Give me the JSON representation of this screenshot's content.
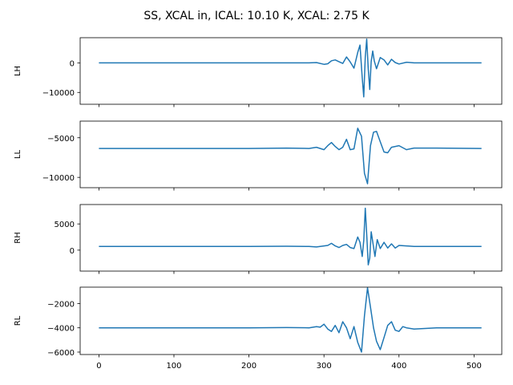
{
  "figure": {
    "suptitle": "SS, XCAL in, ICAL: 10.10 K, XCAL: 2.75 K"
  },
  "chart_data": [
    {
      "type": "line",
      "ylabel": "LH",
      "xlim": [
        -25,
        537
      ],
      "ylim": [
        -14000,
        8500
      ],
      "yticks": [
        {
          "value": 0,
          "label": "0"
        },
        {
          "value": -10000,
          "label": "−10000"
        }
      ],
      "series": [
        {
          "color": "#1f77b4",
          "x": [
            0,
            100,
            200,
            250,
            280,
            290,
            300,
            305,
            310,
            315,
            320,
            325,
            330,
            335,
            340,
            345,
            348,
            351,
            353,
            355,
            357,
            359,
            361,
            363,
            365,
            367,
            370,
            375,
            380,
            385,
            390,
            395,
            400,
            410,
            420,
            450,
            510
          ],
          "y": [
            0,
            0,
            0,
            0,
            0,
            100,
            -500,
            -300,
            700,
            1000,
            400,
            -200,
            2000,
            300,
            -1800,
            3500,
            6000,
            -5000,
            -11500,
            2000,
            8000,
            -2000,
            -9000,
            500,
            4000,
            700,
            -2000,
            1800,
            1000,
            -700,
            1200,
            100,
            -400,
            200,
            0,
            0,
            0
          ]
        }
      ]
    },
    {
      "type": "line",
      "ylabel": "LL",
      "xlim": [
        -25,
        537
      ],
      "ylim": [
        -11300,
        -2900
      ],
      "yticks": [
        {
          "value": -5000,
          "label": "−5000"
        },
        {
          "value": -10000,
          "label": "−10000"
        }
      ],
      "series": [
        {
          "color": "#1f77b4",
          "x": [
            0,
            100,
            200,
            250,
            280,
            290,
            300,
            305,
            310,
            315,
            320,
            325,
            330,
            335,
            340,
            345,
            350,
            354,
            358,
            362,
            366,
            370,
            375,
            380,
            385,
            390,
            400,
            410,
            420,
            450,
            510
          ],
          "y": [
            -6350,
            -6350,
            -6350,
            -6300,
            -6350,
            -6200,
            -6500,
            -6000,
            -5600,
            -6100,
            -6500,
            -6200,
            -5200,
            -6500,
            -6400,
            -3800,
            -4800,
            -9500,
            -10800,
            -6000,
            -4300,
            -4200,
            -5500,
            -6800,
            -6900,
            -6200,
            -6000,
            -6500,
            -6300,
            -6300,
            -6350
          ]
        }
      ]
    },
    {
      "type": "line",
      "ylabel": "RH",
      "xlim": [
        -25,
        537
      ],
      "ylim": [
        -4000,
        8700
      ],
      "yticks": [
        {
          "value": 5000,
          "label": "5000"
        },
        {
          "value": 0,
          "label": "0"
        }
      ],
      "series": [
        {
          "color": "#1f77b4",
          "x": [
            0,
            100,
            200,
            250,
            280,
            290,
            300,
            305,
            310,
            315,
            320,
            325,
            330,
            335,
            340,
            345,
            348,
            351,
            353,
            355,
            357,
            359,
            361,
            363,
            365,
            368,
            371,
            375,
            380,
            385,
            390,
            395,
            400,
            410,
            420,
            450,
            510
          ],
          "y": [
            700,
            700,
            700,
            750,
            700,
            600,
            800,
            900,
            1300,
            800,
            500,
            900,
            1100,
            500,
            300,
            2500,
            1500,
            -1200,
            1800,
            8000,
            3000,
            -2800,
            -1500,
            3500,
            1600,
            -1200,
            2000,
            300,
            1500,
            400,
            1200,
            400,
            900,
            800,
            700,
            700,
            700
          ]
        }
      ]
    },
    {
      "type": "line",
      "ylabel": "RL",
      "xlim": [
        -25,
        537
      ],
      "ylim": [
        -6200,
        -650
      ],
      "yticks": [
        {
          "value": -2000,
          "label": "−2000"
        },
        {
          "value": -4000,
          "label": "−4000"
        },
        {
          "value": -6000,
          "label": "−6000"
        }
      ],
      "series": [
        {
          "color": "#1f77b4",
          "x": [
            0,
            100,
            200,
            250,
            280,
            290,
            295,
            300,
            305,
            310,
            315,
            320,
            325,
            330,
            335,
            340,
            345,
            350,
            354,
            358,
            362,
            366,
            370,
            375,
            380,
            385,
            390,
            395,
            400,
            405,
            410,
            420,
            450,
            510
          ],
          "y": [
            -4000,
            -4000,
            -4000,
            -3980,
            -4000,
            -3900,
            -3950,
            -3700,
            -4100,
            -4300,
            -3800,
            -4400,
            -3500,
            -4000,
            -4900,
            -3900,
            -5200,
            -6000,
            -3000,
            -700,
            -2300,
            -4000,
            -5100,
            -5800,
            -4800,
            -3800,
            -3500,
            -4200,
            -4300,
            -3900,
            -4000,
            -4100,
            -4000,
            -4000
          ]
        }
      ]
    }
  ],
  "shared_x_axis": {
    "ticks": [
      {
        "value": 0,
        "label": "0"
      },
      {
        "value": 100,
        "label": "100"
      },
      {
        "value": 200,
        "label": "200"
      },
      {
        "value": 300,
        "label": "300"
      },
      {
        "value": 400,
        "label": "400"
      },
      {
        "value": 500,
        "label": "500"
      }
    ]
  }
}
